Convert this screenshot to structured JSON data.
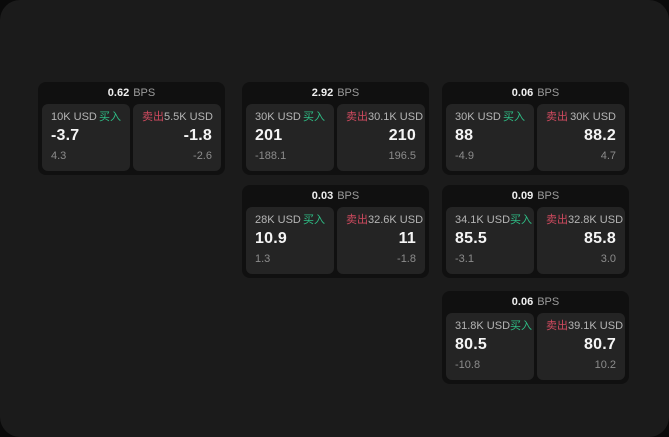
{
  "theme": {
    "outer_bg": "#0a0a0a",
    "surface_bg": "#1b1b1b",
    "card_bg": "#101010",
    "panel_bg": "#242424",
    "buy_color": "#2ebd85",
    "sell_color": "#d04a5f"
  },
  "labels": {
    "bps": "BPS",
    "buy": "买入",
    "sell": "卖出"
  },
  "cards": [
    {
      "bps": "0.62",
      "row": 1,
      "col": 1,
      "buy": {
        "amount": "10K USD",
        "price": "-3.7",
        "delta": "4.3"
      },
      "sell": {
        "amount": "5.5K USD",
        "price": "-1.8",
        "delta": "-2.6"
      }
    },
    {
      "bps": "2.92",
      "row": 1,
      "col": 2,
      "buy": {
        "amount": "30K USD",
        "price": "201",
        "delta": "-188.1"
      },
      "sell": {
        "amount": "30.1K USD",
        "price": "210",
        "delta": "196.5"
      }
    },
    {
      "bps": "0.06",
      "row": 1,
      "col": 3,
      "buy": {
        "amount": "30K USD",
        "price": "88",
        "delta": "-4.9"
      },
      "sell": {
        "amount": "30K USD",
        "price": "88.2",
        "delta": "4.7"
      }
    },
    {
      "bps": "0.03",
      "row": 2,
      "col": 2,
      "buy": {
        "amount": "28K USD",
        "price": "10.9",
        "delta": "1.3"
      },
      "sell": {
        "amount": "32.6K USD",
        "price": "11",
        "delta": "-1.8"
      }
    },
    {
      "bps": "0.09",
      "row": 2,
      "col": 3,
      "buy": {
        "amount": "34.1K USD",
        "price": "85.5",
        "delta": "-3.1"
      },
      "sell": {
        "amount": "32.8K USD",
        "price": "85.8",
        "delta": "3.0"
      }
    },
    {
      "bps": "0.06",
      "row": 3,
      "col": 3,
      "buy": {
        "amount": "31.8K USD",
        "price": "80.5",
        "delta": "-10.8"
      },
      "sell": {
        "amount": "39.1K USD",
        "price": "80.7",
        "delta": "10.2"
      }
    }
  ]
}
